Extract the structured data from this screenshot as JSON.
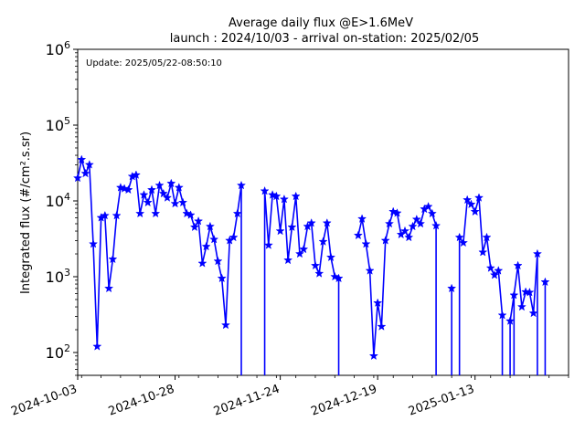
{
  "chart_data": {
    "type": "line",
    "title": "Average daily flux @E>1.6MeV",
    "subtitle": "launch : 2024/10/03 - arrival on-station: 2025/02/05",
    "annotation": "Update: 2025/05/22-08:50:10",
    "ylabel": "Integrated flux (#/cm².s.sr)",
    "xlabel": "",
    "y_scale": "log",
    "ylim": [
      50,
      1000000
    ],
    "xlim": [
      "2024-10-03",
      "2025-02-06"
    ],
    "x_tick_labels": [
      "2024-10-03",
      "2024-10-28",
      "2024-11-24",
      "2024-12-19",
      "2025-01-13"
    ],
    "y_tick_labels": [
      {
        "base": "10",
        "exp": "2"
      },
      {
        "base": "10",
        "exp": "3"
      },
      {
        "base": "10",
        "exp": "4"
      },
      {
        "base": "10",
        "exp": "5"
      },
      {
        "base": "10",
        "exp": "6"
      }
    ],
    "grid": false,
    "legend": "none",
    "series_color": "#0000ff",
    "marker": "star",
    "start_date": "2024-10-03",
    "values": [
      20000,
      35000,
      23000,
      30000,
      2700,
      120,
      6000,
      6400,
      700,
      1700,
      6400,
      15000,
      14500,
      14000,
      21000,
      22000,
      6800,
      12000,
      9500,
      14000,
      6800,
      16000,
      12500,
      11000,
      17000,
      9200,
      15000,
      9500,
      6800,
      6500,
      4500,
      5400,
      1500,
      2500,
      4600,
      3100,
      1600,
      950,
      230,
      3000,
      3300,
      6800,
      16000,
      null,
      null,
      null,
      null,
      null,
      13500,
      2600,
      12000,
      11500,
      4000,
      10500,
      1650,
      4500,
      11500,
      2000,
      2300,
      4600,
      5100,
      1400,
      1100,
      2900,
      5100,
      1800,
      1000,
      950,
      null,
      null,
      null,
      null,
      3500,
      5800,
      2700,
      1200,
      90,
      450,
      220,
      3000,
      5000,
      7200,
      6900,
      3600,
      4000,
      3300,
      4600,
      5700,
      5000,
      7800,
      8400,
      6800,
      4700,
      null,
      null,
      null,
      700,
      null,
      3300,
      2800,
      10300,
      9000,
      7200,
      11000,
      2100,
      3300,
      1300,
      1050,
      1200,
      310,
      null,
      260,
      570,
      1400,
      400,
      630,
      620,
      330,
      2000,
      null,
      850
    ],
    "drops_to_zero": [
      [
        42,
        43
      ],
      [
        47,
        48
      ],
      [
        67,
        68
      ],
      [
        92,
        93
      ],
      [
        95,
        96
      ],
      [
        97,
        98
      ],
      [
        109,
        110
      ],
      [
        111,
        112
      ],
      [
        118,
        119
      ],
      [
        119,
        120
      ]
    ]
  }
}
